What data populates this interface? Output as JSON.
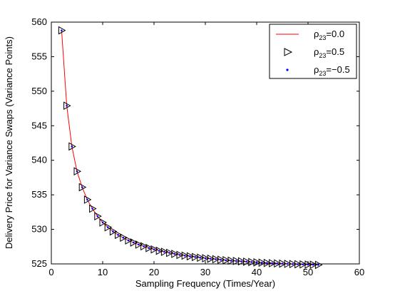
{
  "chart_data": {
    "type": "line",
    "xlabel": "Sampling Frequency (Times/Year)",
    "ylabel": "Delivery Price for Variance Swaps (Variance Points)",
    "xlim": [
      0,
      60
    ],
    "ylim": [
      525,
      560
    ],
    "x_ticks": [
      "0",
      "10",
      "20",
      "30",
      "40",
      "50",
      "60"
    ],
    "y_ticks": [
      "525",
      "530",
      "535",
      "540",
      "545",
      "550",
      "555",
      "560"
    ],
    "grid": false,
    "legend_position": "top-right",
    "x": [
      2,
      3,
      4,
      5,
      6,
      7,
      8,
      9,
      10,
      11,
      12,
      13,
      14,
      15,
      16,
      17,
      18,
      19,
      20,
      21,
      22,
      23,
      24,
      25,
      26,
      27,
      28,
      29,
      30,
      31,
      32,
      33,
      34,
      35,
      36,
      37,
      38,
      39,
      40,
      41,
      42,
      43,
      44,
      45,
      46,
      47,
      48,
      49,
      50,
      51,
      52
    ],
    "series": [
      {
        "name": "0.0",
        "marker": "line",
        "color": "#ff0000",
        "values": [
          558.8,
          547.9,
          542.0,
          538.4,
          536.1,
          534.3,
          533.0,
          531.9,
          531.0,
          530.3,
          529.7,
          529.2,
          528.8,
          528.4,
          528.1,
          527.8,
          527.55,
          527.3,
          527.1,
          526.9,
          526.75,
          526.6,
          526.45,
          526.3,
          526.2,
          526.1,
          526.0,
          525.9,
          525.82,
          525.75,
          525.68,
          525.6,
          525.53,
          525.47,
          525.42,
          525.37,
          525.32,
          525.27,
          525.22,
          525.18,
          525.14,
          525.1,
          525.07,
          525.04,
          525.01,
          524.98,
          524.95,
          524.93,
          524.9,
          524.88,
          524.86
        ]
      },
      {
        "name": "0.5",
        "marker": "triangle-right",
        "color": "#000000",
        "values": [
          558.8,
          547.9,
          542.0,
          538.4,
          536.1,
          534.3,
          533.0,
          531.9,
          531.0,
          530.3,
          529.7,
          529.2,
          528.8,
          528.4,
          528.1,
          527.8,
          527.55,
          527.3,
          527.1,
          526.9,
          526.75,
          526.6,
          526.45,
          526.3,
          526.2,
          526.1,
          526.0,
          525.9,
          525.82,
          525.75,
          525.68,
          525.6,
          525.53,
          525.47,
          525.42,
          525.37,
          525.32,
          525.27,
          525.22,
          525.18,
          525.14,
          525.1,
          525.07,
          525.04,
          525.01,
          524.98,
          524.95,
          524.93,
          524.9,
          524.88,
          524.86
        ]
      },
      {
        "name": "−0.5",
        "marker": "dot",
        "color": "#0000ff",
        "values": [
          558.8,
          547.9,
          542.0,
          538.4,
          536.1,
          534.3,
          533.0,
          531.9,
          531.0,
          530.3,
          529.7,
          529.2,
          528.8,
          528.4,
          528.1,
          527.8,
          527.55,
          527.3,
          527.1,
          526.9,
          526.75,
          526.6,
          526.45,
          526.3,
          526.2,
          526.1,
          526.0,
          525.9,
          525.82,
          525.75,
          525.68,
          525.6,
          525.53,
          525.47,
          525.42,
          525.37,
          525.32,
          525.27,
          525.22,
          525.18,
          525.14,
          525.1,
          525.07,
          525.04,
          525.01,
          524.98,
          524.95,
          524.93,
          524.9,
          524.88,
          524.86
        ]
      }
    ],
    "legend": [
      {
        "prefix": "ρ",
        "sub": "23",
        "value": "=0.0"
      },
      {
        "prefix": "ρ",
        "sub": "23",
        "value": "=0.5"
      },
      {
        "prefix": "ρ",
        "sub": "23",
        "value": "=−0.5"
      }
    ]
  }
}
